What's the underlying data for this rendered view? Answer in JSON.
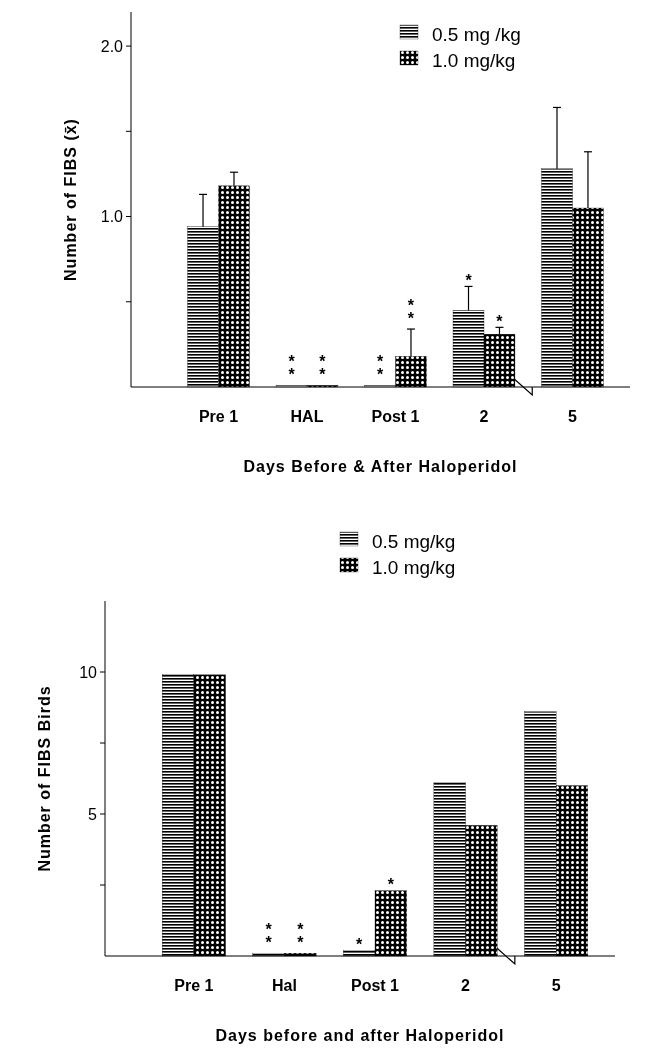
{
  "chart_data": [
    {
      "type": "bar",
      "xlabel": "Days Before & After Haloperidol",
      "ylabel": "Number of FIBS (x̄)",
      "categories": [
        "Pre 1",
        "HAL",
        "Post 1",
        "2",
        "5"
      ],
      "series": [
        {
          "name": "0.5 mg /kg",
          "color": "#000000",
          "values": [
            0.94,
            0.01,
            0.01,
            0.45,
            1.28
          ],
          "errors": [
            [
              0.94,
              1.13
            ],
            null,
            null,
            [
              0.45,
              0.59
            ],
            [
              1.28,
              1.64
            ]
          ],
          "value_labels": [
            null,
            "**",
            "**",
            "*",
            null
          ]
        },
        {
          "name": "1.0 mg/kg",
          "color": "#000000",
          "values": [
            1.18,
            0.01,
            0.18,
            0.31,
            1.05
          ],
          "errors": [
            [
              1.18,
              1.26
            ],
            null,
            [
              0.18,
              0.34
            ],
            [
              0.31,
              0.35
            ],
            [
              1.05,
              1.38
            ]
          ],
          "value_labels": [
            null,
            "**",
            "**",
            "*",
            null
          ]
        }
      ],
      "ylim": [
        0,
        2.2
      ],
      "yticks": [
        {
          "value": 0.5,
          "label": null
        },
        {
          "value": 1,
          "label": "1.0"
        },
        {
          "value": 1.5,
          "label": null
        },
        {
          "value": 2,
          "label": "2.0"
        }
      ],
      "legend": "top right"
    },
    {
      "type": "bar",
      "xlabel": "Days before and after Haloperidol",
      "ylabel": "Number of FIBS Birds",
      "categories": [
        "Pre 1",
        "Hal",
        "Post 1",
        "2",
        "5"
      ],
      "series": [
        {
          "name": "0.5 mg/kg",
          "color": "#000000",
          "values": [
            9.9,
            0.1,
            0.2,
            6.1,
            8.6
          ],
          "value_labels": [
            null,
            "**",
            "*",
            null,
            null
          ]
        },
        {
          "name": "1.0 mg/kg",
          "color": "#000000",
          "values": [
            9.9,
            0.1,
            2.3,
            4.6,
            6.0
          ],
          "value_labels": [
            null,
            "**",
            "*",
            null,
            null
          ]
        }
      ],
      "ylim": [
        0,
        12.5
      ],
      "yticks": [
        {
          "value": 2.5,
          "label": null
        },
        {
          "value": 5,
          "label": "5"
        },
        {
          "value": 7.5,
          "label": null
        },
        {
          "value": 10,
          "label": "10"
        }
      ],
      "legend": "top"
    }
  ]
}
